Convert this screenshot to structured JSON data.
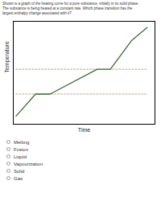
{
  "chart_data": {
    "type": "line",
    "title": "Shown is a graph of the heating curve for a pure substance, initially in its solid phase.\nThe substance is being heated at a constant rate. Which phase transition has the\nlargest enthalpy change associated with it?",
    "x_label": "Time",
    "y_label": "Temperature",
    "x": [
      0.0,
      0.15,
      0.26,
      0.62,
      0.72,
      0.88,
      1.0
    ],
    "values": [
      0.05,
      0.3,
      0.3,
      0.58,
      0.58,
      0.9,
      1.05
    ],
    "color": "#3a6b35",
    "xlim": [
      -0.02,
      1.06
    ],
    "ylim": [
      -0.04,
      1.12
    ],
    "tick_labels": false,
    "grid": false,
    "hlines": {
      "y": [
        0.3,
        0.58
      ],
      "x": [
        0.0,
        1.0
      ],
      "color": "#a09070",
      "line_style": "dashed"
    },
    "options": [
      "Melting",
      "Fusion",
      "Liquid",
      "Vapourization",
      "Solid",
      "Gas"
    ]
  }
}
